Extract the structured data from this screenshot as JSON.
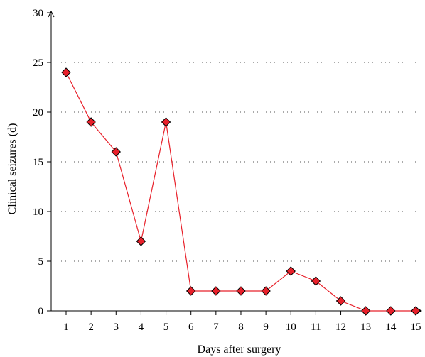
{
  "chart_data": {
    "type": "line",
    "title": "",
    "xlabel": "Days after surgery",
    "ylabel": "Clinical seizures (d)",
    "x": [
      1,
      2,
      3,
      4,
      5,
      6,
      7,
      8,
      9,
      10,
      11,
      12,
      13,
      14,
      15
    ],
    "series": [
      {
        "values": [
          24,
          19,
          16,
          7,
          19,
          2,
          2,
          2,
          2,
          4,
          3,
          1,
          0,
          0,
          0
        ],
        "color": "#e8202a",
        "marker": "diamond",
        "marker_fill": "#e8202a",
        "marker_edge": "#000000"
      }
    ],
    "ylim": [
      0,
      30
    ],
    "yticks": [
      0,
      5,
      10,
      15,
      20,
      25,
      30
    ],
    "xticks": [
      1,
      2,
      3,
      4,
      5,
      6,
      7,
      8,
      9,
      10,
      11,
      12,
      13,
      14,
      15
    ],
    "grid": "horizontal dotted",
    "legend": "none"
  }
}
